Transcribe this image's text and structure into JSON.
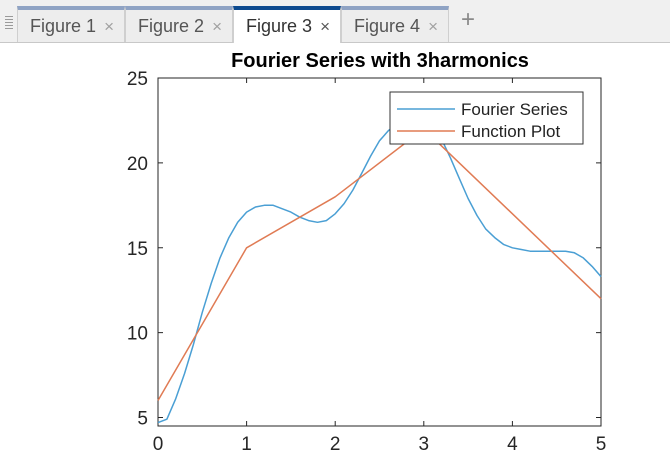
{
  "tabs": [
    {
      "label": "Figure 1",
      "active": false
    },
    {
      "label": "Figure 2",
      "active": false
    },
    {
      "label": "Figure 3",
      "active": true
    },
    {
      "label": "Figure 4",
      "active": false
    }
  ],
  "close_glyph": "×",
  "add_glyph": "+",
  "chart_data": {
    "type": "line",
    "title": "Fourier Series with 3harmonics",
    "xlabel": "",
    "ylabel": "",
    "xlim": [
      0,
      5
    ],
    "ylim": [
      4.5,
      25
    ],
    "xticks": [
      0,
      1,
      2,
      3,
      4,
      5
    ],
    "yticks": [
      5,
      10,
      15,
      20,
      25
    ],
    "grid": false,
    "legend_position": "top-right",
    "series": [
      {
        "name": "Fourier Series",
        "color": "#4a9fd4",
        "x": [
          0,
          0.1,
          0.2,
          0.3,
          0.4,
          0.5,
          0.6,
          0.7,
          0.8,
          0.9,
          1.0,
          1.1,
          1.2,
          1.3,
          1.4,
          1.5,
          1.6,
          1.7,
          1.8,
          1.9,
          2.0,
          2.1,
          2.2,
          2.3,
          2.4,
          2.5,
          2.6,
          2.7,
          2.8,
          2.9,
          3.0,
          3.1,
          3.2,
          3.3,
          3.4,
          3.5,
          3.6,
          3.7,
          3.8,
          3.9,
          4.0,
          4.1,
          4.2,
          4.3,
          4.4,
          4.5,
          4.6,
          4.7,
          4.8,
          4.9,
          5.0
        ],
        "y": [
          4.7,
          4.9,
          6.1,
          7.6,
          9.3,
          11.2,
          12.9,
          14.4,
          15.6,
          16.5,
          17.1,
          17.4,
          17.5,
          17.5,
          17.3,
          17.1,
          16.8,
          16.6,
          16.5,
          16.6,
          17.0,
          17.6,
          18.4,
          19.4,
          20.4,
          21.3,
          21.9,
          22.3,
          22.5,
          22.6,
          22.6,
          22.2,
          21.4,
          20.3,
          19.1,
          17.9,
          16.9,
          16.1,
          15.6,
          15.2,
          15.0,
          14.9,
          14.8,
          14.8,
          14.8,
          14.8,
          14.8,
          14.7,
          14.4,
          13.9,
          13.3
        ]
      },
      {
        "name": "Function Plot",
        "color": "#e07b54",
        "x": [
          0,
          1,
          2,
          3,
          5
        ],
        "y": [
          6,
          15,
          18,
          22,
          12
        ]
      }
    ]
  }
}
